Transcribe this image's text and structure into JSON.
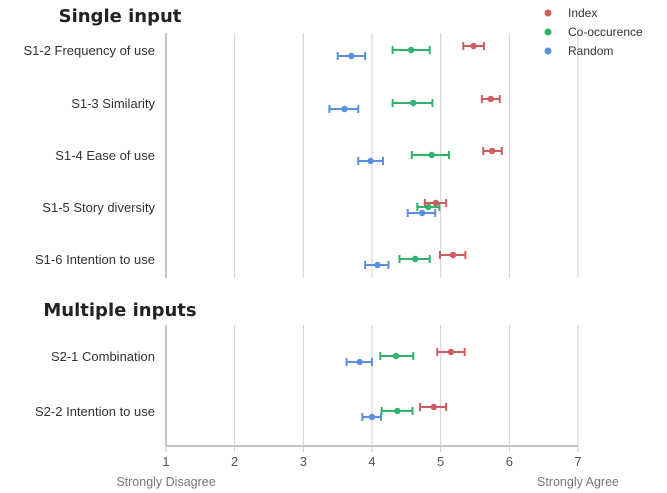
{
  "chart_data": {
    "type": "scatter",
    "xlim": [
      1,
      7
    ],
    "x_ticks": [
      "1",
      "2",
      "3",
      "4",
      "5",
      "6",
      "7"
    ],
    "x_end_labels": {
      "left": "Strongly Disagree",
      "right": "Strongly Agree"
    },
    "grid": "vertical",
    "legend_position": "top-right",
    "series": [
      {
        "name": "Index",
        "color": "#cf5c5c"
      },
      {
        "name": "Co-occurence",
        "color": "#2fb26b"
      },
      {
        "name": "Random",
        "color": "#5b8fe0"
      }
    ],
    "sections": [
      {
        "title": "Single input",
        "items": [
          {
            "label": "S1-2  Frequency of use",
            "points": [
              {
                "series": "Index",
                "mean": 5.48,
                "low": 5.33,
                "high": 5.63
              },
              {
                "series": "Co-occurence",
                "mean": 4.57,
                "low": 4.3,
                "high": 4.84
              },
              {
                "series": "Random",
                "mean": 3.7,
                "low": 3.5,
                "high": 3.9
              }
            ]
          },
          {
            "label": "S1-3  Similarity",
            "points": [
              {
                "series": "Index",
                "mean": 5.73,
                "low": 5.6,
                "high": 5.86
              },
              {
                "series": "Co-occurence",
                "mean": 4.6,
                "low": 4.3,
                "high": 4.88
              },
              {
                "series": "Random",
                "mean": 3.6,
                "low": 3.38,
                "high": 3.8
              }
            ]
          },
          {
            "label": "S1-4  Ease of use",
            "points": [
              {
                "series": "Index",
                "mean": 5.75,
                "low": 5.62,
                "high": 5.89
              },
              {
                "series": "Co-occurence",
                "mean": 4.87,
                "low": 4.58,
                "high": 5.12
              },
              {
                "series": "Random",
                "mean": 3.98,
                "low": 3.8,
                "high": 4.16
              }
            ]
          },
          {
            "label": "S1-5  Story diversity",
            "points": [
              {
                "series": "Index",
                "mean": 4.93,
                "low": 4.77,
                "high": 5.08
              },
              {
                "series": "Co-occurence",
                "mean": 4.82,
                "low": 4.66,
                "high": 4.98
              },
              {
                "series": "Random",
                "mean": 4.73,
                "low": 4.52,
                "high": 4.92
              }
            ]
          },
          {
            "label": "S1-6  Intention to use",
            "points": [
              {
                "series": "Index",
                "mean": 5.18,
                "low": 4.99,
                "high": 5.36
              },
              {
                "series": "Co-occurence",
                "mean": 4.63,
                "low": 4.4,
                "high": 4.84
              },
              {
                "series": "Random",
                "mean": 4.08,
                "low": 3.9,
                "high": 4.24
              }
            ]
          }
        ]
      },
      {
        "title": "Multiple inputs",
        "items": [
          {
            "label": "S2-1  Combination",
            "points": [
              {
                "series": "Index",
                "mean": 5.15,
                "low": 4.95,
                "high": 5.35
              },
              {
                "series": "Co-occurence",
                "mean": 4.35,
                "low": 4.12,
                "high": 4.6
              },
              {
                "series": "Random",
                "mean": 3.82,
                "low": 3.63,
                "high": 4.0
              }
            ]
          },
          {
            "label": "S2-2  Intention to use",
            "points": [
              {
                "series": "Index",
                "mean": 4.9,
                "low": 4.7,
                "high": 5.08
              },
              {
                "series": "Co-occurence",
                "mean": 4.37,
                "low": 4.14,
                "high": 4.59
              },
              {
                "series": "Random",
                "mean": 4.0,
                "low": 3.86,
                "high": 4.13
              }
            ]
          }
        ]
      }
    ]
  }
}
